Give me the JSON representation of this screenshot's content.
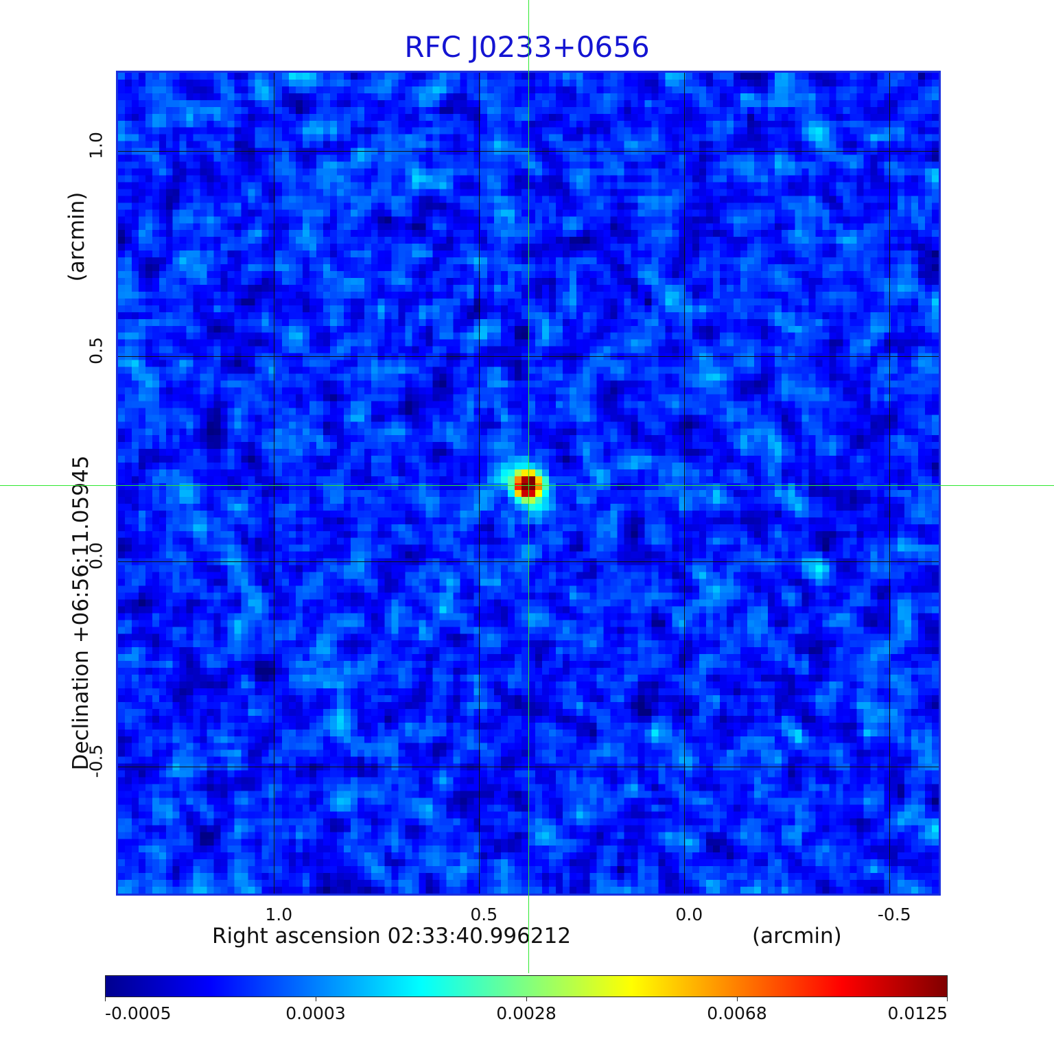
{
  "title": "RFC J0233+0656",
  "xaxis": {
    "label": "Right ascension  02:33:40.996212",
    "unit": "(arcmin)",
    "ticks": [
      "1.0",
      "0.5",
      "0.0",
      "-0.5"
    ]
  },
  "yaxis": {
    "label": "Declination  +06:56:11.05945",
    "unit": "(arcmin)",
    "ticks": [
      "1.0",
      "0.5",
      "0.0",
      "-0.5"
    ]
  },
  "colorbar": {
    "labels": [
      "-0.0005",
      "0.0003",
      "0.0028",
      "0.0068",
      "0.0125"
    ],
    "colors": [
      "#00008f",
      "#0000ff",
      "#0080ff",
      "#00ffff",
      "#80ff80",
      "#ffff00",
      "#ff8000",
      "#ff0000",
      "#800000"
    ]
  },
  "colors": {
    "title": "#1414d2",
    "crosshair": "#2ee82e",
    "background_map": "#2a7cf0"
  },
  "chart_data": {
    "type": "heatmap",
    "title": "RFC J0233+0656",
    "xlabel": "Right ascension  02:33:40.996212",
    "ylabel": "Declination  +06:56:11.05945",
    "x_unit": "arcmin",
    "y_unit": "arcmin",
    "xlim": [
      1.38,
      -0.62
    ],
    "ylim": [
      -0.81,
      1.19
    ],
    "x_ticks": [
      1.0,
      0.5,
      0.0,
      -0.5
    ],
    "y_ticks": [
      1.0,
      0.5,
      0.0,
      -0.5
    ],
    "grid": true,
    "colormap": "jet",
    "colorbar_ticks": [
      -0.0005,
      0.0003,
      0.0028,
      0.0068,
      0.0125
    ],
    "value_range": [
      -0.0005,
      0.0125
    ],
    "background_level": 0.0002,
    "peak": {
      "x": 0.38,
      "y": 0.185,
      "value": 0.0125
    },
    "crosshair": {
      "x": 0.38,
      "y": 0.185
    }
  }
}
